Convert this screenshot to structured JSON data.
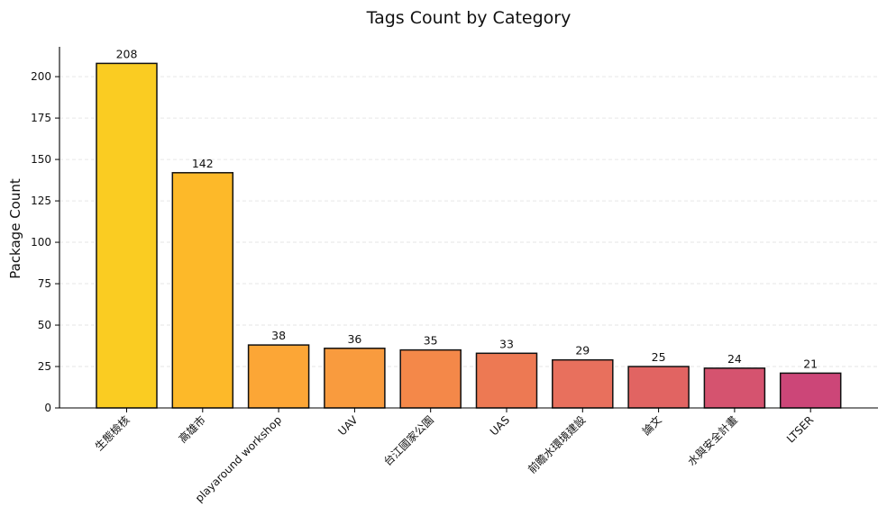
{
  "chart_data": {
    "type": "bar",
    "title": "Tags Count by Category",
    "xlabel": "",
    "ylabel": "Package Count",
    "categories": [
      "生態檢核",
      "高雄市",
      "playaround workshop",
      "UAV",
      "台江國家公園",
      "UAS",
      "前瞻水環境建設",
      "論文",
      "水與安全計畫",
      "LTSER"
    ],
    "values": [
      208,
      142,
      38,
      36,
      35,
      33,
      29,
      25,
      24,
      21
    ],
    "colors": [
      "#FACC22",
      "#FDB929",
      "#FCA636",
      "#F99B3E",
      "#F48849",
      "#ED7953",
      "#E8705D",
      "#E16462",
      "#D5536F",
      "#CC4678"
    ],
    "ylim": [
      0,
      218
    ],
    "yticks": [
      0,
      25,
      50,
      75,
      100,
      125,
      150,
      175,
      200
    ],
    "grid": true,
    "legend": "none"
  }
}
